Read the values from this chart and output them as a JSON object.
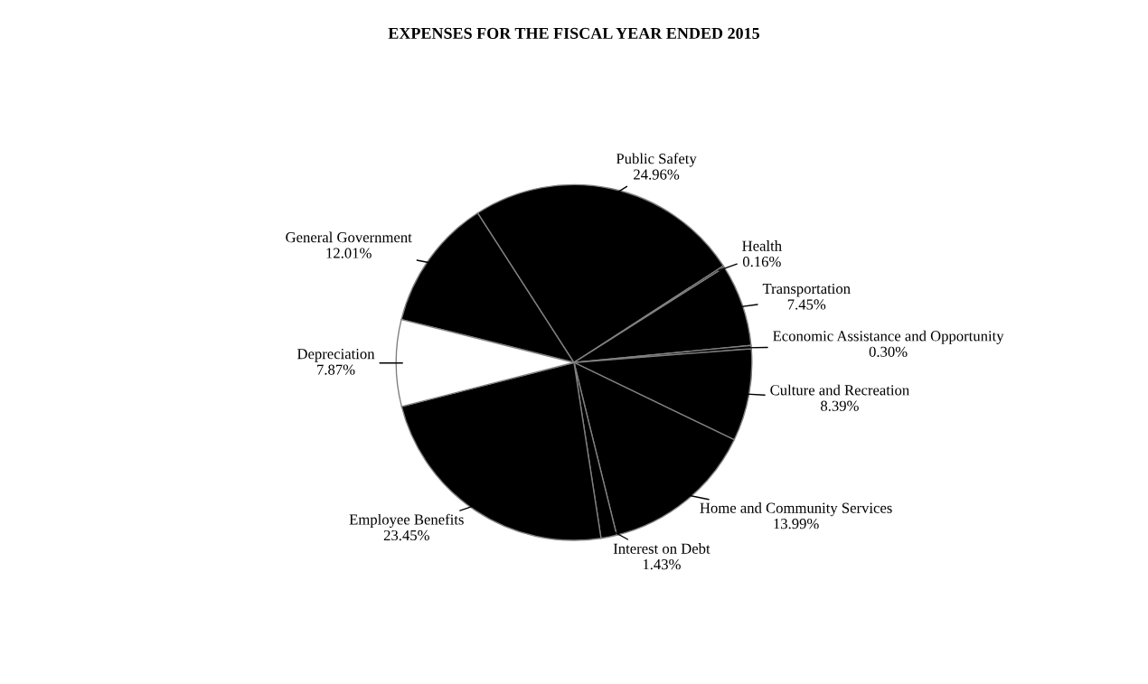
{
  "chart_data": {
    "type": "pie",
    "title": "EXPENSES FOR THE FISCAL YEAR ENDED 2015",
    "categories": [
      "General Government",
      "Public Safety",
      "Health",
      "Transportation",
      "Economic Assistance and Opportunity",
      "Culture and Recreation",
      "Home and Community Services",
      "Interest on Debt",
      "Employee Benefits",
      "Depreciation"
    ],
    "values": [
      12.01,
      24.96,
      0.16,
      7.45,
      0.3,
      8.39,
      13.99,
      1.43,
      23.45,
      7.87
    ],
    "value_labels": [
      "12.01%",
      "24.96%",
      "0.16%",
      "7.45%",
      "0.30%",
      "8.39%",
      "13.99%",
      "1.43%",
      "23.45%",
      "7.87%"
    ],
    "colors": [
      "#000000",
      "#000000",
      "#000000",
      "#000000",
      "#000000",
      "#000000",
      "#000000",
      "#000000",
      "#000000",
      "#ffffff"
    ],
    "legend": false
  }
}
